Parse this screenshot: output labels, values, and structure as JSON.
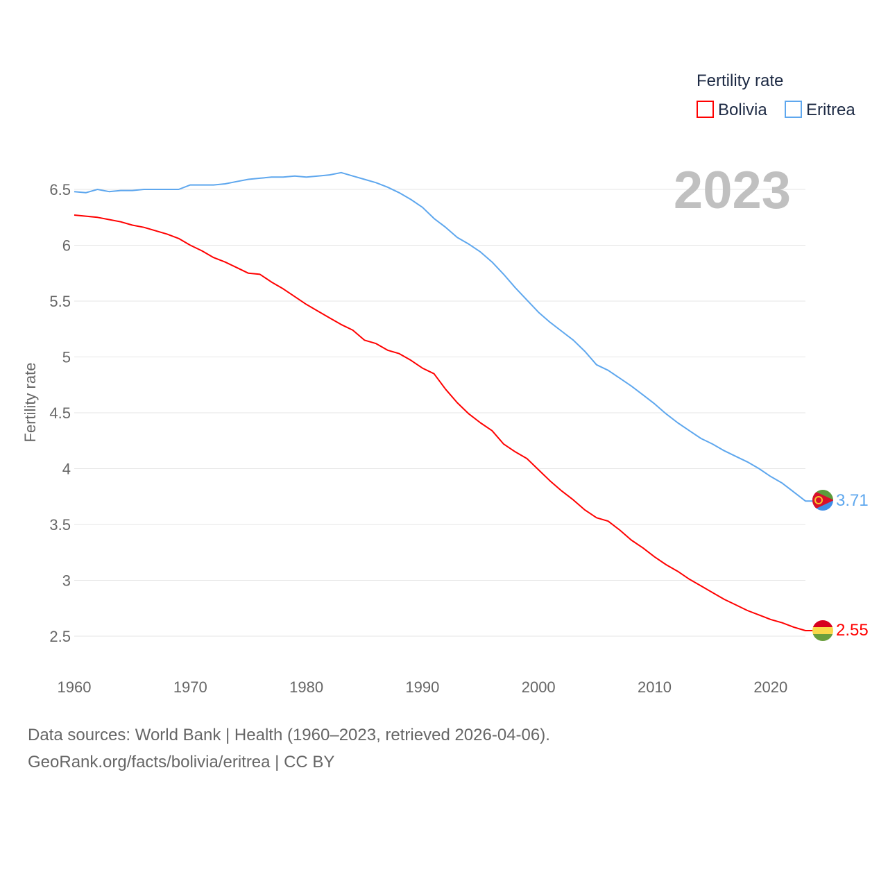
{
  "chart_data": {
    "type": "line",
    "title": "Fertility rate",
    "ylabel": "Fertility rate",
    "xlabel": "",
    "ylim": [
      2.5,
      6.5
    ],
    "xlim": [
      1960,
      2023
    ],
    "yticks": [
      "2.5",
      "3",
      "3.5",
      "4",
      "4.5",
      "5",
      "5.5",
      "6",
      "6.5"
    ],
    "xticks": [
      "1960",
      "1970",
      "1980",
      "1990",
      "2000",
      "2010",
      "2020"
    ],
    "grid": true,
    "legend_placement": "top-right",
    "year_label": "2023",
    "x": [
      1960,
      1961,
      1962,
      1963,
      1964,
      1965,
      1966,
      1967,
      1968,
      1969,
      1970,
      1971,
      1972,
      1973,
      1974,
      1975,
      1976,
      1977,
      1978,
      1979,
      1980,
      1981,
      1982,
      1983,
      1984,
      1985,
      1986,
      1987,
      1988,
      1989,
      1990,
      1991,
      1992,
      1993,
      1994,
      1995,
      1996,
      1997,
      1998,
      1999,
      2000,
      2001,
      2002,
      2003,
      2004,
      2005,
      2006,
      2007,
      2008,
      2009,
      2010,
      2011,
      2012,
      2013,
      2014,
      2015,
      2016,
      2017,
      2018,
      2019,
      2020,
      2021,
      2022,
      2023
    ],
    "series": [
      {
        "name": "Bolivia",
        "color": "#ff0000",
        "end_label": "2.55",
        "values": [
          6.27,
          6.26,
          6.25,
          6.23,
          6.21,
          6.18,
          6.16,
          6.13,
          6.1,
          6.06,
          6.0,
          5.95,
          5.89,
          5.85,
          5.8,
          5.75,
          5.74,
          5.67,
          5.61,
          5.54,
          5.47,
          5.41,
          5.35,
          5.29,
          5.24,
          5.15,
          5.12,
          5.06,
          5.03,
          4.97,
          4.9,
          4.85,
          4.71,
          4.59,
          4.49,
          4.41,
          4.34,
          4.22,
          4.15,
          4.09,
          3.99,
          3.89,
          3.8,
          3.72,
          3.63,
          3.56,
          3.53,
          3.45,
          3.36,
          3.29,
          3.21,
          3.14,
          3.08,
          3.01,
          2.95,
          2.89,
          2.83,
          2.78,
          2.73,
          2.69,
          2.65,
          2.62,
          2.58,
          2.55
        ]
      },
      {
        "name": "Eritrea",
        "color": "#5ea7ee",
        "end_label": "3.71",
        "values": [
          6.48,
          6.47,
          6.5,
          6.48,
          6.49,
          6.49,
          6.5,
          6.5,
          6.5,
          6.5,
          6.54,
          6.54,
          6.54,
          6.55,
          6.57,
          6.59,
          6.6,
          6.61,
          6.61,
          6.62,
          6.61,
          6.62,
          6.63,
          6.65,
          6.62,
          6.59,
          6.56,
          6.52,
          6.47,
          6.41,
          6.34,
          6.24,
          6.16,
          6.07,
          6.01,
          5.94,
          5.85,
          5.74,
          5.62,
          5.51,
          5.4,
          5.31,
          5.23,
          5.15,
          5.05,
          4.93,
          4.88,
          4.81,
          4.74,
          4.66,
          4.58,
          4.49,
          4.41,
          4.34,
          4.27,
          4.22,
          4.16,
          4.11,
          4.06,
          4.0,
          3.93,
          3.87,
          3.79,
          3.71
        ]
      }
    ]
  },
  "footer": {
    "line1": "Data sources: World Bank | Health (1960–2023, retrieved 2026-04-06).",
    "line2": "GeoRank.org/facts/bolivia/eritrea | CC BY"
  }
}
